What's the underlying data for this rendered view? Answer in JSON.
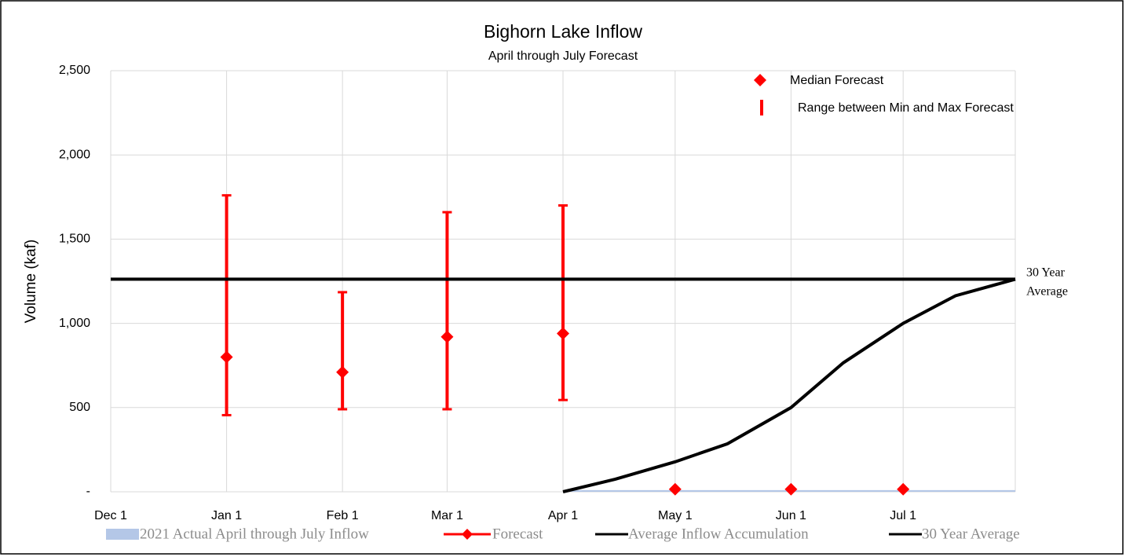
{
  "chart_data": {
    "type": "line",
    "title": "Bighorn Lake Inflow",
    "subtitle": "April through July Forecast",
    "y_label": "Volume (kaf)",
    "xlim": [
      0,
      242
    ],
    "xticks": [
      {
        "value": 0,
        "label": "Dec 1"
      },
      {
        "value": 31,
        "label": "Jan 1"
      },
      {
        "value": 62,
        "label": "Feb 1"
      },
      {
        "value": 90,
        "label": "Mar 1"
      },
      {
        "value": 121,
        "label": "Apr 1"
      },
      {
        "value": 151,
        "label": "May 1"
      },
      {
        "value": 182,
        "label": "Jun 1"
      },
      {
        "value": 212,
        "label": "Jul 1"
      }
    ],
    "ylim": [
      0,
      2500
    ],
    "yticks": [
      {
        "value": 0,
        "label": "-"
      },
      500,
      {
        "value": 1000,
        "label": "1,000"
      },
      {
        "value": 1500,
        "label": "1,500"
      },
      {
        "value": 2000,
        "label": "2,000"
      },
      {
        "value": 2500,
        "label": "2,500"
      }
    ],
    "grid": true,
    "series": [
      {
        "name": "2021 Actual April through July Inflow",
        "kind": "area",
        "color": "#b4c7e7",
        "x": [
          121,
          242
        ],
        "values": [
          10,
          10
        ]
      },
      {
        "name": "Forecast",
        "kind": "markers",
        "color": "#ff0000",
        "x": [
          31,
          62,
          90,
          121,
          151,
          182,
          212
        ],
        "values": [
          800,
          710,
          920,
          940,
          15,
          15,
          15
        ],
        "min": [
          455,
          490,
          490,
          545,
          null,
          null,
          null
        ],
        "max": [
          1760,
          1185,
          1660,
          1700,
          null,
          null,
          null
        ]
      },
      {
        "name": "Average Inflow Accumulation",
        "kind": "line",
        "color": "#000000",
        "x": [
          121,
          135,
          151,
          165,
          182,
          196,
          212,
          226,
          242
        ],
        "values": [
          0,
          75,
          178,
          285,
          500,
          766,
          1000,
          1164,
          1262
        ]
      },
      {
        "name": "30 Year Average",
        "kind": "line",
        "color": "#000000",
        "x": [
          0,
          242
        ],
        "values": [
          1262,
          1262
        ]
      }
    ],
    "inner_legend": [
      "Median Forecast",
      "Range between Min and Max Forecast"
    ],
    "annotation": [
      "30 Year",
      "Average"
    ]
  }
}
